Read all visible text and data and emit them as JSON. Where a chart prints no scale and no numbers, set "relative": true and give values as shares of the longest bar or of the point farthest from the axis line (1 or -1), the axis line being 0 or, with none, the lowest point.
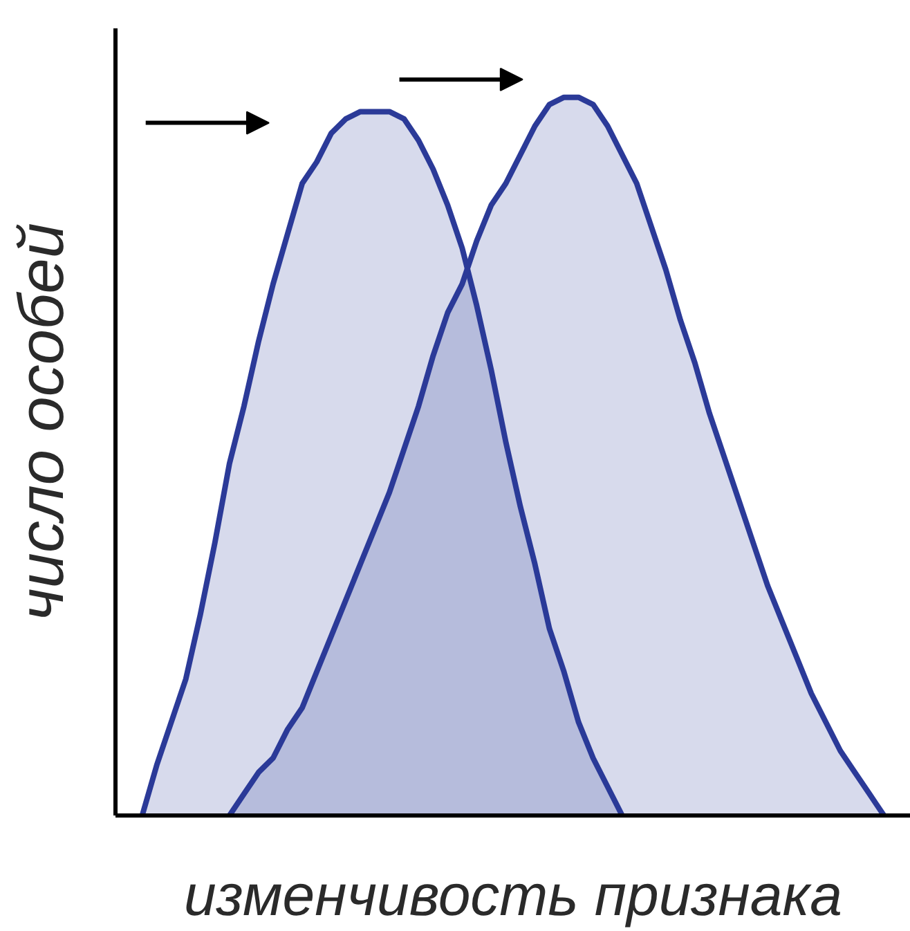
{
  "chart_data": {
    "type": "area",
    "relative": true,
    "xlabel": "изменчивость признака",
    "ylabel": "число особей",
    "categories": [
      null,
      null,
      null,
      null,
      null,
      null,
      null,
      null,
      null,
      null,
      null,
      null,
      null,
      null,
      null,
      null,
      null,
      null,
      null,
      null,
      null,
      null,
      null,
      null,
      null,
      null,
      null,
      null,
      null,
      null,
      null,
      null,
      null,
      null,
      null,
      null,
      null,
      null,
      null,
      null,
      null,
      null,
      null,
      null,
      null,
      null,
      null,
      null,
      null,
      null,
      null,
      null
    ],
    "series": [
      {
        "color": "#2b3a98",
        "values": [
          0,
          0.07,
          0.13,
          0.19,
          0.28,
          0.38,
          0.49,
          0.57,
          0.66,
          0.74,
          0.81,
          0.88,
          0.91,
          0.95,
          0.97,
          0.98,
          0.98,
          0.98,
          0.97,
          0.94,
          0.9,
          0.85,
          0.79,
          0.71,
          0.62,
          0.52,
          0.43,
          0.35,
          0.26,
          0.2,
          0.13,
          0.08,
          0.04,
          0,
          null,
          null,
          null,
          null,
          null,
          null,
          null,
          null,
          null,
          null,
          null,
          null,
          null,
          null,
          null,
          null,
          null,
          null
        ]
      },
      {
        "color": "#2b3a98",
        "values": [
          null,
          null,
          null,
          null,
          null,
          null,
          0,
          0.03,
          0.06,
          0.08,
          0.12,
          0.15,
          0.2,
          0.25,
          0.3,
          0.35,
          0.4,
          0.45,
          0.51,
          0.57,
          0.64,
          0.7,
          0.74,
          0.8,
          0.85,
          0.88,
          0.92,
          0.96,
          0.99,
          1,
          1,
          0.99,
          0.96,
          0.92,
          0.88,
          0.82,
          0.76,
          0.69,
          0.63,
          0.56,
          0.5,
          0.44,
          0.38,
          0.32,
          0.27,
          0.22,
          0.17,
          0.13,
          0.09,
          0.06,
          0.03,
          0
        ]
      }
    ]
  }
}
